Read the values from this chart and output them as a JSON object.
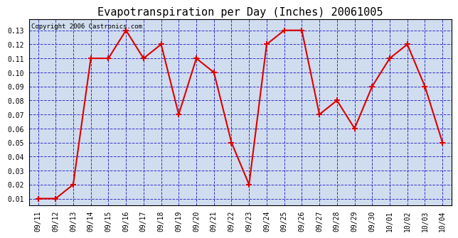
{
  "title": "Evapotranspiration per Day (Inches) 20061005",
  "copyright_text": "Copyright 2006 Castronics.com",
  "dates": [
    "09/11",
    "09/12",
    "09/13",
    "09/14",
    "09/15",
    "09/16",
    "09/17",
    "09/18",
    "09/19",
    "09/20",
    "09/21",
    "09/22",
    "09/23",
    "09/24",
    "09/25",
    "09/26",
    "09/27",
    "09/28",
    "09/29",
    "09/30",
    "10/01",
    "10/02",
    "10/03",
    "10/04"
  ],
  "values": [
    0.01,
    0.01,
    0.02,
    0.11,
    0.11,
    0.13,
    0.11,
    0.12,
    0.07,
    0.11,
    0.1,
    0.05,
    0.02,
    0.12,
    0.13,
    0.13,
    0.07,
    0.08,
    0.06,
    0.09,
    0.11,
    0.12,
    0.09,
    0.05
  ],
  "ylim": [
    0.005,
    0.138
  ],
  "yticks": [
    0.01,
    0.02,
    0.03,
    0.04,
    0.05,
    0.06,
    0.07,
    0.08,
    0.09,
    0.1,
    0.11,
    0.12,
    0.13
  ],
  "line_color": "#dd0000",
  "marker": "+",
  "marker_color": "#dd0000",
  "marker_size": 6,
  "marker_linewidth": 1.5,
  "grid_color": "#3333cc",
  "grid_linestyle": "--",
  "grid_linewidth": 0.7,
  "plot_bg_color": "#d0ddee",
  "fig_bg_color": "#ffffff",
  "title_fontsize": 11,
  "tick_fontsize": 7,
  "copyright_fontsize": 6.5,
  "line_width": 1.5
}
